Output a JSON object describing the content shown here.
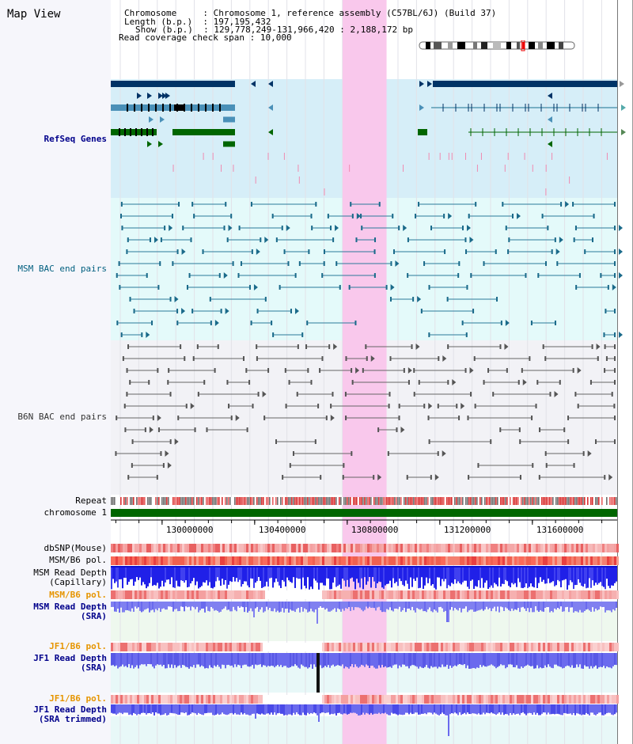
{
  "title": "Map View",
  "info": {
    "chromosome_key": "Chromosome",
    "chromosome_value": "Chromosome 1, reference assembly (C57BL/6J) (Build 37)",
    "length_key": "Length (b.p.)",
    "length_value": "197,195,432",
    "show_key": "Show (b.p.)",
    "show_value": "129,778,249-131,966,420 : 2,188,172 bp",
    "coverage_key": "Read coverage check span",
    "coverage_value": "10,000"
  },
  "tracks": {
    "refseq": "RefSeq Genes",
    "msm_bac": "MSM BAC end pairs",
    "b6n_bac": "B6N BAC end pairs",
    "repeat": "Repeat",
    "chromosome": "chromosome 1",
    "dbsnp": "dbSNP(Mouse)",
    "msm_b6_pol_1": "MSM/B6 pol.",
    "msm_depth_cap": "MSM Read Depth\n(Capillary)",
    "msm_b6_pol_2": "MSM/B6 pol.",
    "msm_depth_sra": "MSM Read Depth\n(SRA)",
    "jf1_b6_pol_1": "JF1/B6 pol.",
    "jf1_depth_sra": "JF1 Read Depth\n(SRA)",
    "jf1_b6_pol_2": "JF1/B6 pol.",
    "jf1_depth_trim": "JF1 Read Depth\n(SRA trimmed)"
  },
  "axis": {
    "ticks": [
      {
        "label": "130000000",
        "value": 130000000
      },
      {
        "label": "130400000",
        "value": 130400000
      },
      {
        "label": "130800000",
        "value": 130800000
      },
      {
        "label": "131200000",
        "value": 131200000
      },
      {
        "label": "131600000",
        "value": 131600000
      }
    ],
    "range_start": 129778249,
    "range_end": 131966420
  },
  "highlight": {
    "start": 130780000,
    "end": 130970000
  },
  "colors": {
    "refseq_bg": "#d6eef8",
    "msm_bg": "#e4fafa",
    "b6n_bg": "#f2f2f6",
    "highlight": "#f9c8ec",
    "navy": "#003366",
    "steel": "#4a90b8",
    "green": "#006600",
    "depth_blue": "#1a1aee",
    "depth_light": "#7070ee",
    "teal_line": "#1a7090"
  }
}
